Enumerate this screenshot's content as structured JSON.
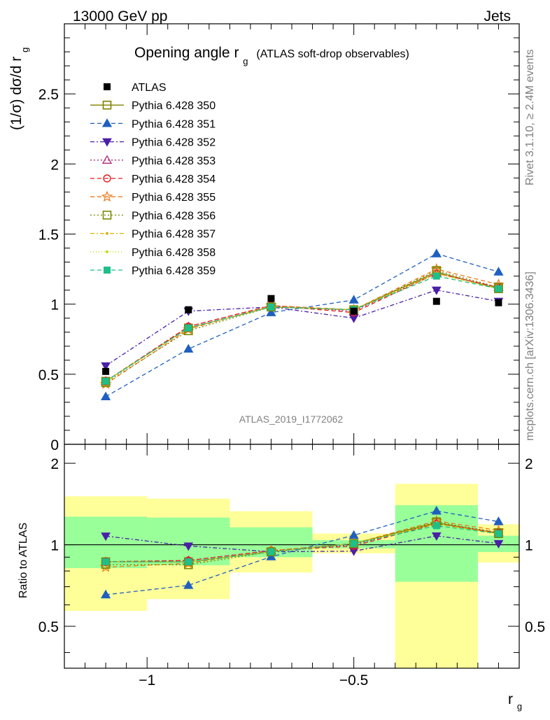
{
  "header": {
    "beam": "13000 GeV pp",
    "process": "Jets"
  },
  "side_labels": {
    "rivet": "Rivet 3.1.10, ≥ 2.4M events",
    "mcplots": "mcplots.cern.ch [arXiv:1306.3436]"
  },
  "chart_data": {
    "type": "line",
    "title_main": "Opening angle r",
    "title_sub": "g",
    "title_extra": "(ATLAS soft-drop observables)",
    "analysis_label": "ATLAS_2019_I1772062",
    "xlabel": "r",
    "xlabel_sub": "g",
    "ylabel": "(1/σ) dσ/d r",
    "ylabel_sub": "g",
    "ratio_ylabel": "Ratio to ATLAS",
    "xlim": [
      -1.2,
      -0.1
    ],
    "ylim_main": [
      0,
      3.0
    ],
    "ylim_ratio": [
      0.35,
      2.35
    ],
    "ratio_scale": "log",
    "x_ticks": [
      {
        "value": -1,
        "label": "−1"
      },
      {
        "value": -0.5,
        "label": "−0.5"
      }
    ],
    "y_ticks_main": [
      {
        "value": 0,
        "label": "0"
      },
      {
        "value": 0.5,
        "label": "0.5"
      },
      {
        "value": 1,
        "label": "1"
      },
      {
        "value": 1.5,
        "label": "1.5"
      },
      {
        "value": 2,
        "label": "2"
      },
      {
        "value": 2.5,
        "label": "2.5"
      }
    ],
    "y_ticks_ratio": [
      {
        "value": 0.5,
        "label": "0.5"
      },
      {
        "value": 1,
        "label": "1"
      },
      {
        "value": 2,
        "label": "2"
      }
    ],
    "bin_edges": [
      -1.2,
      -1.0,
      -0.8,
      -0.6,
      -0.4,
      -0.2,
      -0.1
    ],
    "x": [
      -1.1,
      -0.9,
      -0.7,
      -0.5,
      -0.3,
      -0.15
    ],
    "data": {
      "name": "ATLAS",
      "values": [
        0.52,
        0.96,
        1.04,
        0.95,
        1.02,
        1.01
      ],
      "stat_band": [
        [
          0.82,
          1.27
        ],
        [
          0.84,
          1.26
        ],
        [
          0.9,
          1.16
        ],
        [
          0.97,
          1.04
        ],
        [
          0.73,
          1.4
        ],
        [
          0.94,
          1.08
        ]
      ],
      "total_band": [
        [
          0.57,
          1.51
        ],
        [
          0.63,
          1.48
        ],
        [
          0.79,
          1.33
        ],
        [
          0.93,
          1.1
        ],
        [
          0.32,
          1.68
        ],
        [
          0.86,
          1.19
        ]
      ]
    },
    "series": [
      {
        "name": "Pythia 6.428 350",
        "color": "#808000",
        "dash": "",
        "marker": "square-open",
        "values": [
          0.45,
          0.83,
          0.98,
          0.96,
          1.23,
          1.11
        ]
      },
      {
        "name": "Pythia 6.428 351",
        "color": "#1f5fbf",
        "dash": "6,4",
        "marker": "triangle-up-filled",
        "values": [
          0.34,
          0.68,
          0.94,
          1.03,
          1.36,
          1.23
        ]
      },
      {
        "name": "Pythia 6.428 352",
        "color": "#4b1fa8",
        "dash": "6,3,2,3",
        "marker": "triangle-down-filled",
        "values": [
          0.56,
          0.95,
          0.98,
          0.9,
          1.1,
          1.02
        ]
      },
      {
        "name": "Pythia 6.428 353",
        "color": "#b0267a",
        "dash": "2,3",
        "marker": "triangle-up-open",
        "values": [
          0.45,
          0.84,
          0.99,
          0.95,
          1.22,
          1.12
        ]
      },
      {
        "name": "Pythia 6.428 354",
        "color": "#e01e1e",
        "dash": "6,4",
        "marker": "circle-open",
        "values": [
          0.45,
          0.84,
          0.99,
          0.94,
          1.22,
          1.12
        ]
      },
      {
        "name": "Pythia 6.428 355",
        "color": "#f07818",
        "dash": "6,4",
        "marker": "star-open",
        "values": [
          0.43,
          0.82,
          0.99,
          0.96,
          1.25,
          1.14
        ]
      },
      {
        "name": "Pythia 6.428 356",
        "color": "#7a8a00",
        "dash": "2,3",
        "marker": "square-open",
        "values": [
          0.44,
          0.81,
          0.98,
          0.96,
          1.24,
          1.12
        ]
      },
      {
        "name": "Pythia 6.428 357",
        "color": "#d6b400",
        "dash": "6,3,2,3",
        "marker": "dot",
        "values": [
          0.45,
          0.83,
          0.98,
          0.96,
          1.22,
          1.11
        ]
      },
      {
        "name": "Pythia 6.428 358",
        "color": "#c8d600",
        "dash": "1,3",
        "marker": "dot",
        "values": [
          0.45,
          0.83,
          0.98,
          0.96,
          1.21,
          1.11
        ]
      },
      {
        "name": "Pythia 6.428 359",
        "color": "#1fbf8a",
        "dash": "6,4",
        "marker": "square-filled",
        "values": [
          0.45,
          0.83,
          0.98,
          0.96,
          1.2,
          1.11
        ]
      }
    ],
    "legend_position": "top-left",
    "colors": {
      "data": "#000000",
      "stat_band": "#99ff99",
      "total_band": "#ffff99"
    }
  }
}
